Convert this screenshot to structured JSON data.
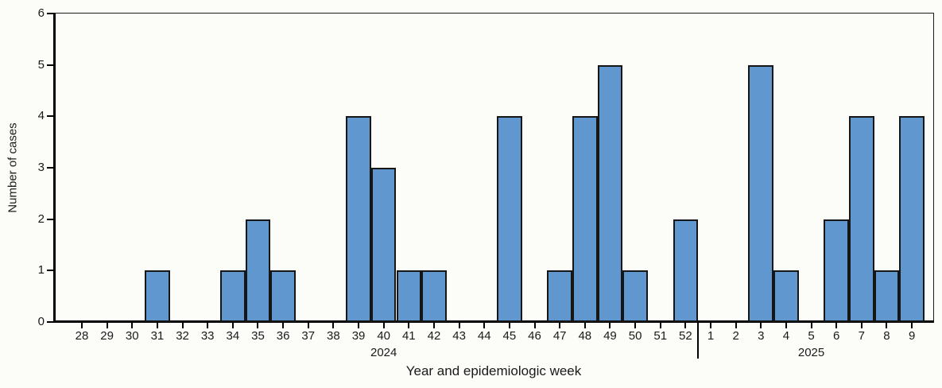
{
  "chart_data": {
    "type": "bar",
    "title": "",
    "xlabel": "Year and epidemiologic week",
    "ylabel": "Number of cases",
    "ylim": [
      0,
      6
    ],
    "yticks": [
      0,
      1,
      2,
      3,
      4,
      5,
      6
    ],
    "grid": false,
    "legend": false,
    "groups": [
      {
        "year": "2024",
        "weeks": [
          "28",
          "29",
          "30",
          "31",
          "32",
          "33",
          "34",
          "35",
          "36",
          "37",
          "38",
          "39",
          "40",
          "41",
          "42",
          "43",
          "44",
          "45",
          "46",
          "47",
          "48",
          "49",
          "50",
          "51",
          "52"
        ],
        "values": [
          0,
          0,
          0,
          1,
          0,
          0,
          1,
          2,
          1,
          0,
          0,
          4,
          3,
          1,
          1,
          0,
          0,
          4,
          0,
          1,
          4,
          5,
          1,
          0,
          2
        ]
      },
      {
        "year": "2025",
        "weeks": [
          "1",
          "2",
          "3",
          "4",
          "5",
          "6",
          "7",
          "8",
          "9"
        ],
        "values": [
          0,
          0,
          5,
          1,
          0,
          2,
          4,
          1,
          4
        ]
      }
    ],
    "colors": {
      "bar_fill": "#6197CF",
      "bar_stroke": "#161616",
      "axis": "#000000",
      "text": "#1A1A1A"
    }
  }
}
